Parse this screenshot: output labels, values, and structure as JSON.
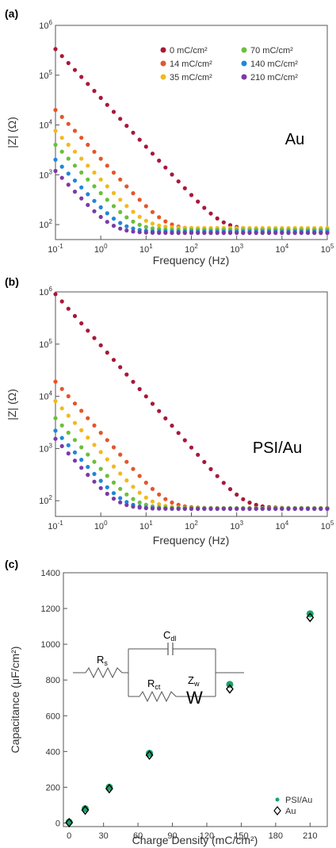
{
  "chart_data": [
    {
      "type": "scatter",
      "panel_label": "(a)",
      "annotation": "Au",
      "xlabel": "Frequency (Hz)",
      "ylabel": "|Z| (Ω)",
      "xscale": "log",
      "yscale": "log",
      "xlim": [
        0.1,
        100000
      ],
      "ylim": [
        50,
        1000000
      ],
      "x_ticks": [
        "10^-1",
        "10^0",
        "10^1",
        "10^2",
        "10^3",
        "10^4",
        "10^5"
      ],
      "y_ticks": [
        "10^2",
        "10^3",
        "10^4",
        "10^5",
        "10^6"
      ],
      "legend_position": "top-right",
      "series": [
        {
          "name": "0 mC/cm²",
          "color": "#a8183a",
          "R": 80,
          "A": 35000,
          "slope": 0.98
        },
        {
          "name": "14 mC/cm²",
          "color": "#e5552a",
          "R": 80,
          "A": 2100,
          "slope": 0.98
        },
        {
          "name": "35 mC/cm²",
          "color": "#f2b91e",
          "R": 85,
          "A": 800,
          "slope": 0.98
        },
        {
          "name": "70 mC/cm²",
          "color": "#6bbf3a",
          "R": 78,
          "A": 420,
          "slope": 0.98
        },
        {
          "name": "140 mC/cm²",
          "color": "#1e88d8",
          "R": 72,
          "A": 210,
          "slope": 0.98
        },
        {
          "name": "210 mC/cm²",
          "color": "#7b3aa6",
          "R": 68,
          "A": 125,
          "slope": 0.98
        }
      ]
    },
    {
      "type": "scatter",
      "panel_label": "(b)",
      "annotation": "PSI/Au",
      "xlabel": "Frequency (Hz)",
      "ylabel": "|Z| (Ω)",
      "xscale": "log",
      "yscale": "log",
      "xlim": [
        0.1,
        100000
      ],
      "ylim": [
        50,
        1000000
      ],
      "x_ticks": [
        "10^-1",
        "10^0",
        "10^1",
        "10^2",
        "10^3",
        "10^4",
        "10^5"
      ],
      "y_ticks": [
        "10^2",
        "10^3",
        "10^4",
        "10^5",
        "10^6"
      ],
      "series": [
        {
          "name": "0 mC/cm²",
          "color": "#a8183a",
          "R": 72,
          "A": 95000,
          "slope": 0.98
        },
        {
          "name": "14 mC/cm²",
          "color": "#e5552a",
          "R": 72,
          "A": 2000,
          "slope": 0.98
        },
        {
          "name": "35 mC/cm²",
          "color": "#f2b91e",
          "R": 72,
          "A": 850,
          "slope": 0.98
        },
        {
          "name": "70 mC/cm²",
          "color": "#6bbf3a",
          "R": 72,
          "A": 400,
          "slope": 0.98
        },
        {
          "name": "140 mC/cm²",
          "color": "#1e88d8",
          "R": 70,
          "A": 230,
          "slope": 0.98
        },
        {
          "name": "210 mC/cm²",
          "color": "#7b3aa6",
          "R": 70,
          "A": 160,
          "slope": 0.98
        }
      ]
    },
    {
      "type": "scatter",
      "panel_label": "(c)",
      "xlabel": "Charge Density (mC/cm²)",
      "ylabel": "Capacitance (μF/cm²)",
      "xlim": [
        -5,
        225
      ],
      "ylim": [
        -20,
        1400
      ],
      "x_ticks": [
        0,
        30,
        60,
        90,
        120,
        150,
        180,
        210
      ],
      "y_ticks": [
        0,
        200,
        400,
        600,
        800,
        1000,
        1200,
        1400
      ],
      "legend_position": "bottom-right",
      "circuit_labels": {
        "rs": "R",
        "rs_sub": "s",
        "cdl": "C",
        "cdl_sub": "dl",
        "rct": "R",
        "rct_sub": "ct",
        "zw": "Z",
        "zw_sub": "w",
        "w": "W"
      },
      "series": [
        {
          "name": "PSI/Au",
          "color": "#1aa36b",
          "x": [
            0,
            14,
            35,
            70,
            140,
            210
          ],
          "y": [
            5,
            80,
            200,
            390,
            775,
            1170
          ]
        },
        {
          "name": "Au",
          "color": "#000000",
          "x": [
            0,
            14,
            35,
            70,
            140,
            210
          ],
          "y": [
            2,
            72,
            192,
            380,
            750,
            1150
          ]
        }
      ]
    }
  ]
}
